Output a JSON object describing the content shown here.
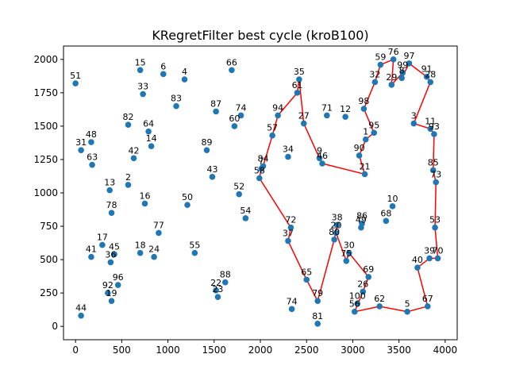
{
  "chart_data": {
    "type": "scatter",
    "title": "KRegretFilter best cycle (kroB100)",
    "xlabel": "",
    "ylabel": "",
    "xlim": [
      -130,
      4130
    ],
    "ylim": [
      -100,
      2100
    ],
    "xticks": [
      0,
      500,
      1000,
      1500,
      2000,
      2500,
      3000,
      3500,
      4000
    ],
    "yticks": [
      0,
      250,
      500,
      750,
      1000,
      1250,
      1500,
      1750,
      2000
    ],
    "grid": false,
    "point_color": "#1f77b4",
    "cycle_color": "#ff0000",
    "points": [
      {
        "id": "51",
        "x": 0,
        "y": 1820
      },
      {
        "id": "15",
        "x": 700,
        "y": 1920
      },
      {
        "id": "6",
        "x": 950,
        "y": 1890
      },
      {
        "id": "4",
        "x": 1180,
        "y": 1850
      },
      {
        "id": "66",
        "x": 1690,
        "y": 1920
      },
      {
        "id": "33",
        "x": 730,
        "y": 1740
      },
      {
        "id": "83",
        "x": 1090,
        "y": 1650
      },
      {
        "id": "87",
        "x": 1520,
        "y": 1610
      },
      {
        "id": "74",
        "x": 1790,
        "y": 1580
      },
      {
        "id": "60",
        "x": 1720,
        "y": 1500
      },
      {
        "id": "82",
        "x": 570,
        "y": 1510
      },
      {
        "id": "64",
        "x": 790,
        "y": 1460
      },
      {
        "id": "14",
        "x": 820,
        "y": 1350
      },
      {
        "id": "48",
        "x": 170,
        "y": 1380
      },
      {
        "id": "31",
        "x": 60,
        "y": 1320
      },
      {
        "id": "42",
        "x": 630,
        "y": 1260
      },
      {
        "id": "63",
        "x": 180,
        "y": 1210
      },
      {
        "id": "89",
        "x": 1420,
        "y": 1320
      },
      {
        "id": "43",
        "x": 1480,
        "y": 1120
      },
      {
        "id": "13",
        "x": 370,
        "y": 1020
      },
      {
        "id": "2",
        "x": 570,
        "y": 1060
      },
      {
        "id": "78",
        "x": 390,
        "y": 850
      },
      {
        "id": "16",
        "x": 750,
        "y": 920
      },
      {
        "id": "50",
        "x": 1210,
        "y": 910
      },
      {
        "id": "52",
        "x": 1770,
        "y": 990
      },
      {
        "id": "54",
        "x": 1840,
        "y": 810
      },
      {
        "id": "77",
        "x": 900,
        "y": 700
      },
      {
        "id": "17",
        "x": 290,
        "y": 610
      },
      {
        "id": "41",
        "x": 170,
        "y": 520
      },
      {
        "id": "45",
        "x": 420,
        "y": 540
      },
      {
        "id": "36",
        "x": 380,
        "y": 480
      },
      {
        "id": "18",
        "x": 700,
        "y": 550
      },
      {
        "id": "24",
        "x": 850,
        "y": 520
      },
      {
        "id": "55",
        "x": 1290,
        "y": 550
      },
      {
        "id": "96",
        "x": 460,
        "y": 310
      },
      {
        "id": "92",
        "x": 350,
        "y": 250
      },
      {
        "id": "19",
        "x": 390,
        "y": 190
      },
      {
        "id": "44",
        "x": 60,
        "y": 80
      },
      {
        "id": "88",
        "x": 1620,
        "y": 330
      },
      {
        "id": "22",
        "x": 1520,
        "y": 270
      },
      {
        "id": "23",
        "x": 1540,
        "y": 220
      },
      {
        "id": "35",
        "x": 2420,
        "y": 1850
      },
      {
        "id": "61",
        "x": 2400,
        "y": 1750
      },
      {
        "id": "94",
        "x": 2190,
        "y": 1580
      },
      {
        "id": "27",
        "x": 2470,
        "y": 1520
      },
      {
        "id": "57",
        "x": 2130,
        "y": 1430
      },
      {
        "id": "34",
        "x": 2300,
        "y": 1270
      },
      {
        "id": "71",
        "x": 2720,
        "y": 1580
      },
      {
        "id": "12",
        "x": 2920,
        "y": 1570
      },
      {
        "id": "9",
        "x": 2640,
        "y": 1260
      },
      {
        "id": "46",
        "x": 2670,
        "y": 1220
      },
      {
        "id": "7",
        "x": 2010,
        "y": 1180
      },
      {
        "id": "84",
        "x": 2030,
        "y": 1200
      },
      {
        "id": "58",
        "x": 1990,
        "y": 1110
      },
      {
        "id": "72",
        "x": 2330,
        "y": 740
      },
      {
        "id": "37",
        "x": 2300,
        "y": 640
      },
      {
        "id": "65",
        "x": 2500,
        "y": 350
      },
      {
        "id": "79",
        "x": 2620,
        "y": 190
      },
      {
        "id": "74b",
        "x": 2340,
        "y": 130
      },
      {
        "id": "81",
        "x": 2620,
        "y": 20
      },
      {
        "id": "59",
        "x": 3300,
        "y": 1960
      },
      {
        "id": "76",
        "x": 3440,
        "y": 2000
      },
      {
        "id": "97",
        "x": 3610,
        "y": 1970
      },
      {
        "id": "99",
        "x": 3540,
        "y": 1900
      },
      {
        "id": "8",
        "x": 3530,
        "y": 1860
      },
      {
        "id": "29",
        "x": 3420,
        "y": 1810
      },
      {
        "id": "32",
        "x": 3240,
        "y": 1830
      },
      {
        "id": "91",
        "x": 3800,
        "y": 1870
      },
      {
        "id": "28",
        "x": 3840,
        "y": 1830
      },
      {
        "id": "98",
        "x": 3120,
        "y": 1630
      },
      {
        "id": "95",
        "x": 3230,
        "y": 1450
      },
      {
        "id": "1",
        "x": 3140,
        "y": 1400
      },
      {
        "id": "90",
        "x": 3070,
        "y": 1280
      },
      {
        "id": "21",
        "x": 3130,
        "y": 1140
      },
      {
        "id": "3",
        "x": 3660,
        "y": 1520
      },
      {
        "id": "11",
        "x": 3840,
        "y": 1480
      },
      {
        "id": "93",
        "x": 3880,
        "y": 1440
      },
      {
        "id": "85",
        "x": 3870,
        "y": 1170
      },
      {
        "id": "73",
        "x": 3900,
        "y": 1080
      },
      {
        "id": "10",
        "x": 3430,
        "y": 900
      },
      {
        "id": "68",
        "x": 3360,
        "y": 790
      },
      {
        "id": "86",
        "x": 3100,
        "y": 770
      },
      {
        "id": "49",
        "x": 3090,
        "y": 740
      },
      {
        "id": "38",
        "x": 2830,
        "y": 760
      },
      {
        "id": "20",
        "x": 2820,
        "y": 700
      },
      {
        "id": "80",
        "x": 2800,
        "y": 650
      },
      {
        "id": "30",
        "x": 2960,
        "y": 550
      },
      {
        "id": "75",
        "x": 2930,
        "y": 490
      },
      {
        "id": "53",
        "x": 3890,
        "y": 740
      },
      {
        "id": "39",
        "x": 3830,
        "y": 510
      },
      {
        "id": "70",
        "x": 3920,
        "y": 510
      },
      {
        "id": "40",
        "x": 3700,
        "y": 440
      },
      {
        "id": "69",
        "x": 3170,
        "y": 370
      },
      {
        "id": "26",
        "x": 3110,
        "y": 260
      },
      {
        "id": "100",
        "x": 3050,
        "y": 170
      },
      {
        "id": "56",
        "x": 3020,
        "y": 110
      },
      {
        "id": "62",
        "x": 3290,
        "y": 150
      },
      {
        "id": "5",
        "x": 3590,
        "y": 110
      },
      {
        "id": "67",
        "x": 3810,
        "y": 150
      }
    ],
    "cycle": [
      "35",
      "61",
      "94",
      "57",
      "84",
      "7",
      "58",
      "72",
      "37",
      "65",
      "79",
      "80",
      "38",
      "20",
      "75",
      "30",
      "69",
      "26",
      "56",
      "62",
      "5",
      "67",
      "40",
      "39",
      "70",
      "53",
      "73",
      "85",
      "93",
      "11",
      "3",
      "28",
      "91",
      "97",
      "8",
      "99",
      "29",
      "76",
      "59",
      "32",
      "98",
      "95",
      "1",
      "90",
      "21",
      "46",
      "9",
      "27",
      "35"
    ]
  }
}
